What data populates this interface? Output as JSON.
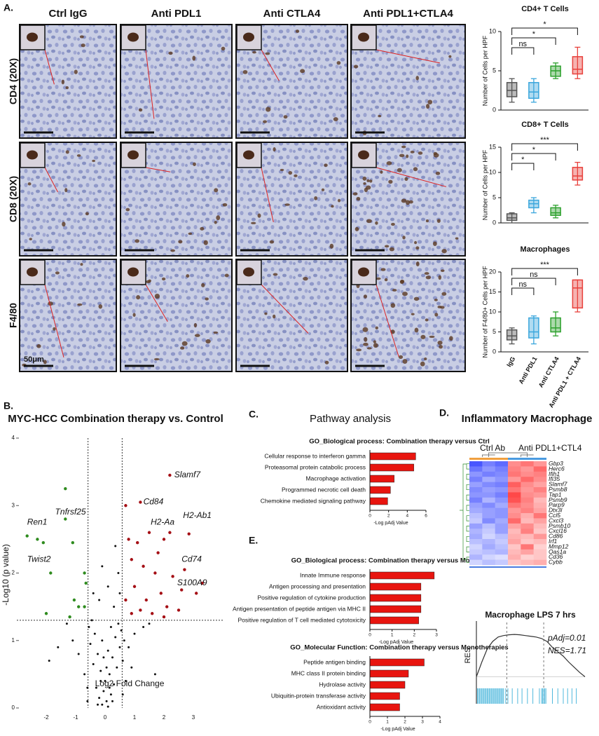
{
  "panels": {
    "a": {
      "label": "A.",
      "columns": [
        "Ctrl IgG",
        "Anti PDL1",
        "Anti CTLA4",
        "Anti PDL1+CTLA4"
      ],
      "rows": [
        "CD4 (20X)",
        "CD8 (20X)",
        "F4/80"
      ],
      "scale_bar": "50μm"
    },
    "b": {
      "label": "B."
    },
    "c": {
      "label": "C.",
      "title": "Pathway analysis"
    },
    "d": {
      "label": "D."
    },
    "e": {
      "label": "E."
    }
  },
  "chart_data": [
    {
      "type": "box",
      "title": "CD4+ T Cells",
      "y_label": "Number of Cells per HPF",
      "ylim": [
        0,
        10
      ],
      "yticks": [
        0,
        5,
        10
      ],
      "boxes": [
        {
          "color": "#555555",
          "min": 1,
          "q1": 1.7,
          "median": 2.5,
          "q3": 3.5,
          "max": 4
        },
        {
          "color": "#3aa6dc",
          "min": 1,
          "q1": 1.5,
          "median": 2.3,
          "q3": 3.5,
          "max": 4
        },
        {
          "color": "#2ca02c",
          "min": 4,
          "q1": 4.3,
          "median": 5,
          "q3": 5.6,
          "max": 6
        },
        {
          "color": "#e8413c",
          "min": 4,
          "q1": 4.6,
          "median": 5.2,
          "q3": 6.8,
          "max": 8
        }
      ],
      "annotations": [
        "ns",
        "*",
        "*"
      ]
    },
    {
      "type": "box",
      "title": "CD8+ T Cells",
      "y_label": "Number of Cells per HPF",
      "ylim": [
        0,
        15
      ],
      "yticks": [
        0,
        5,
        10,
        15
      ],
      "boxes": [
        {
          "color": "#555555",
          "min": 0,
          "q1": 0.5,
          "median": 1,
          "q3": 1.8,
          "max": 2
        },
        {
          "color": "#3aa6dc",
          "min": 2,
          "q1": 3,
          "median": 3.8,
          "q3": 4.5,
          "max": 5
        },
        {
          "color": "#2ca02c",
          "min": 1,
          "q1": 1.5,
          "median": 2,
          "q3": 3,
          "max": 3.5
        },
        {
          "color": "#e8413c",
          "min": 7.5,
          "q1": 8.5,
          "median": 9.3,
          "q3": 11,
          "max": 12
        }
      ],
      "annotations": [
        "*",
        "*",
        "***"
      ]
    },
    {
      "type": "box",
      "title": "Macrophages",
      "y_label": "Number of F4/80+ Cells per HPF",
      "ylim": [
        0,
        20
      ],
      "yticks": [
        0,
        5,
        10,
        15,
        20
      ],
      "categories": [
        "IgG",
        "Anti PDL1",
        "Anti CTLA4",
        "Anti PDL1 + CTLA4"
      ],
      "boxes": [
        {
          "color": "#555555",
          "min": 2,
          "q1": 3,
          "median": 4,
          "q3": 5.5,
          "max": 6
        },
        {
          "color": "#3aa6dc",
          "min": 2,
          "q1": 3.5,
          "median": 5,
          "q3": 8.5,
          "max": 9
        },
        {
          "color": "#2ca02c",
          "min": 4,
          "q1": 5,
          "median": 6,
          "q3": 8.5,
          "max": 10
        },
        {
          "color": "#e8413c",
          "min": 10,
          "q1": 11,
          "median": 16,
          "q3": 18,
          "max": 18
        }
      ],
      "annotations": [
        "ns",
        "ns",
        "***"
      ]
    },
    {
      "type": "scatter",
      "title": "MYC-HCC Combination therapy vs. Control",
      "x_label": "Log2 Fold Change",
      "y_label": "-Log10 (p value)",
      "xlim": [
        -3,
        4
      ],
      "ylim": [
        0,
        4
      ],
      "xticks": [
        -2,
        -1,
        0,
        1,
        2,
        3
      ],
      "yticks": [
        0,
        1,
        2,
        3,
        4
      ],
      "x_thresholds": [
        -0.58,
        0.58
      ],
      "y_threshold": 1.3,
      "series": [
        {
          "color": "#111111",
          "x": [
            -0.1,
            0.05,
            0.1,
            -0.2,
            0.2,
            -0.3,
            0.3,
            -0.05,
            0.0,
            0.15,
            -0.15,
            0.4,
            -0.4,
            0.25,
            -0.25,
            0.5,
            -0.5,
            0.1,
            -0.1,
            0.35,
            -0.35,
            0.55,
            -0.55,
            0.45,
            -0.45,
            0.2,
            0.6,
            0.8,
            1.0,
            1.3,
            0.9,
            0.7,
            -0.7,
            -0.9,
            -1.1,
            -1.3,
            -0.6,
            0.3,
            -0.2,
            0.1,
            0.45,
            -0.4,
            0.35,
            -0.1,
            0.5,
            0.65,
            1.5,
            -1.6,
            0.05,
            -0.05,
            0.15,
            -0.15,
            0.25,
            -0.25,
            0.6,
            -0.6,
            1.7,
            -1.9
          ],
          "values": [
            0.05,
            0.1,
            0.02,
            0.15,
            0.2,
            0.3,
            0.35,
            0.25,
            0.4,
            0.5,
            0.55,
            0.6,
            0.65,
            0.75,
            0.8,
            0.9,
            0.95,
            0.85,
            1.0,
            1.05,
            1.1,
            1.15,
            1.2,
            1.25,
            1.3,
            1.2,
            0.7,
            0.9,
            1.1,
            1.2,
            0.6,
            0.4,
            0.5,
            0.8,
            1.0,
            1.25,
            0.3,
            1.5,
            1.6,
            1.8,
            2.0,
            1.7,
            2.4,
            2.1,
            1.7,
            1.0,
            1.25,
            0.9,
            0.6,
            0.75,
            0.3,
            0.4,
            0.1,
            0.05,
            0.2,
            0.1,
            0.5,
            0.7
          ]
        },
        {
          "color": "#2e8b1e",
          "x": [
            -1.35,
            -2.65,
            -2.3,
            -2.1,
            -1.1,
            -1.85,
            -1.35,
            -0.7,
            -0.65,
            -0.9,
            -0.7,
            -1.05,
            -2.0,
            -1.2
          ],
          "values": [
            3.25,
            2.55,
            2.5,
            2.45,
            2.45,
            2.0,
            2.8,
            2.0,
            1.85,
            1.5,
            1.5,
            1.6,
            1.4,
            1.35
          ]
        },
        {
          "color": "#a50f15",
          "x": [
            2.2,
            1.2,
            0.7,
            2.0,
            2.85,
            2.7,
            3.3,
            0.8,
            1.1,
            1.5,
            2.2,
            0.9,
            1.3,
            1.7,
            2.3,
            2.6,
            1.0,
            1.4,
            1.9,
            2.1,
            0.7,
            1.2,
            1.6,
            2.5,
            0.9,
            3.1,
            1.8,
            2.0
          ],
          "values": [
            3.45,
            3.05,
            3.0,
            2.5,
            2.58,
            2.05,
            1.85,
            2.5,
            2.45,
            2.6,
            2.6,
            2.2,
            2.1,
            2.0,
            1.95,
            1.75,
            1.8,
            1.6,
            1.7,
            1.5,
            1.6,
            1.45,
            1.4,
            1.45,
            1.4,
            1.7,
            2.3,
            1.35
          ]
        }
      ],
      "labels": [
        {
          "text": "Slamf7",
          "x": 2.35,
          "y": 3.45
        },
        {
          "text": "Cd84",
          "x": 1.3,
          "y": 3.05
        },
        {
          "text": "H2-Aa",
          "x": 1.55,
          "y": 2.75
        },
        {
          "text": "H2-Ab1",
          "x": 2.65,
          "y": 2.85
        },
        {
          "text": "Cd74",
          "x": 2.6,
          "y": 2.2
        },
        {
          "text": "S100A9",
          "x": 2.45,
          "y": 1.85
        },
        {
          "text": "Tnfrsf25",
          "x": -1.7,
          "y": 2.9
        },
        {
          "text": "Ren1",
          "x": -2.65,
          "y": 2.75
        },
        {
          "text": "Twist2",
          "x": -2.65,
          "y": 2.2
        }
      ]
    },
    {
      "type": "barh",
      "title": "GO_Biological process: Combination therapy versus Ctrl",
      "x_label": "-Log pAdj Value",
      "color": "#e8150f",
      "categories": [
        "Cellular response to interferon gamma",
        "Proteasomal protein catabolic process",
        "Macrophage activation",
        "Programmed necrotic cell death",
        "Chemokine mediated signaling pathway"
      ],
      "values": [
        4.9,
        4.7,
        2.6,
        2.2,
        1.9
      ],
      "xlim": [
        0,
        6
      ],
      "xticks": [
        0,
        2,
        4,
        6
      ]
    },
    {
      "type": "barh",
      "title": "GO_Biological process: Combination therapy versus Monotherapies",
      "x_label": "-Log pAdj Value",
      "color": "#e8150f",
      "categories": [
        "Innate Immune response",
        "Antigen processing and presentation",
        "Positive regulation of cytokine production",
        "Antigen presentation of peptide antigen via MHC II",
        "Positive regulation of T cell mediated cytotoxicity"
      ],
      "values": [
        2.9,
        2.3,
        2.3,
        2.3,
        2.2
      ],
      "xlim": [
        0,
        3
      ],
      "xticks": [
        0,
        1,
        2,
        3
      ]
    },
    {
      "type": "barh",
      "title": "GO_Molecular Function: Combination therapy versus Monotherapies",
      "x_label": "-Log pAdj Value",
      "color": "#e8150f",
      "categories": [
        "Peptide antigen binding",
        "MHC class II protein binding",
        "Hydrolase activity",
        "Ubiquitin-protein transferase activity",
        "Antioxidant activity"
      ],
      "values": [
        3.1,
        2.2,
        2.0,
        1.7,
        1.7
      ],
      "xlim": [
        0,
        4
      ],
      "xticks": [
        0,
        1,
        2,
        3,
        4
      ]
    },
    {
      "type": "heatmap",
      "title": "Inflammatory Macrophage",
      "groups": [
        "Ctrl Ab",
        "Anti PDL1+CTL4"
      ],
      "rows": [
        "Gbp3",
        "Herc6",
        "Ifih1",
        "Ifi35",
        "Slamf7",
        "Psmb8",
        "Tap1",
        "Psmb9",
        "Parp9",
        "Dtx3l",
        "Ccl5",
        "Cxcl3",
        "Psmb10",
        "Cxcl16",
        "Cd86",
        "Irf1",
        "Mmp12",
        "Oas1a",
        "Cd36",
        "Cybb"
      ],
      "values": [
        [
          -1.6,
          -1.2,
          -1.4,
          1.0,
          1.2,
          0.9
        ],
        [
          -1.3,
          -1.0,
          -1.2,
          1.1,
          0.9,
          1.3
        ],
        [
          -1.0,
          -1.2,
          -1.1,
          1.2,
          1.0,
          1.1
        ],
        [
          -1.2,
          -0.8,
          -1.0,
          0.9,
          1.3,
          1.0
        ],
        [
          -0.9,
          -1.1,
          -1.2,
          1.4,
          1.0,
          0.8
        ],
        [
          -1.1,
          -0.9,
          -1.0,
          1.2,
          0.9,
          1.1
        ],
        [
          -1.0,
          -1.0,
          -1.2,
          1.6,
          1.0,
          0.9
        ],
        [
          -1.2,
          -0.7,
          -1.0,
          1.5,
          1.1,
          0.6
        ],
        [
          -0.9,
          -1.1,
          -0.8,
          1.2,
          1.0,
          0.7
        ],
        [
          -0.8,
          -0.9,
          -1.0,
          0.9,
          1.1,
          0.8
        ],
        [
          -0.6,
          -0.9,
          -1.0,
          1.0,
          0.7,
          1.2
        ],
        [
          -0.5,
          -1.1,
          -0.8,
          1.3,
          0.6,
          0.8
        ],
        [
          -0.9,
          -0.6,
          -0.9,
          0.8,
          1.0,
          0.6
        ],
        [
          -0.7,
          -0.5,
          -0.9,
          0.6,
          1.1,
          0.5
        ],
        [
          -0.8,
          -0.4,
          -0.6,
          0.7,
          0.6,
          0.9
        ],
        [
          -0.6,
          -0.7,
          -0.5,
          0.8,
          0.5,
          0.6
        ],
        [
          -0.4,
          -0.8,
          -0.6,
          0.5,
          1.2,
          0.4
        ],
        [
          -0.5,
          -0.6,
          -0.7,
          0.6,
          0.8,
          0.5
        ],
        [
          -0.7,
          -0.4,
          -0.3,
          0.7,
          0.4,
          0.5
        ],
        [
          -0.4,
          -0.6,
          -0.5,
          0.5,
          0.6,
          0.7
        ]
      ],
      "clim": [
        -2,
        2
      ],
      "colors": [
        "#1a2cff",
        "#ffffff",
        "#ff1a1a"
      ]
    },
    {
      "type": "line",
      "title": "Macrophage LPS 7 hrs",
      "y_label": "RES",
      "color": "#333333",
      "hit_color": "#4fb8dc",
      "x": [
        0,
        5,
        10,
        15,
        20,
        25,
        30,
        35,
        40,
        45,
        50,
        55,
        60,
        65,
        70,
        75,
        80,
        85,
        90,
        95,
        100
      ],
      "values": [
        0,
        0.2,
        0.38,
        0.48,
        0.54,
        0.56,
        0.57,
        0.575,
        0.57,
        0.56,
        0.55,
        0.54,
        0.52,
        0.48,
        0.4,
        0.34,
        0.28,
        0.2,
        0.13,
        0.06,
        0
      ],
      "xlim": [
        0,
        100
      ],
      "ylim": [
        -0.1,
        0.7
      ],
      "markers": [
        28,
        62
      ],
      "hits": [
        1,
        2,
        3,
        4,
        5,
        6,
        7,
        8,
        9,
        10,
        11,
        12,
        13,
        14,
        15,
        16,
        17,
        18,
        19,
        20,
        21,
        22,
        23,
        24,
        25,
        27,
        29,
        33,
        38,
        42,
        47,
        52,
        58,
        60,
        61,
        62,
        63,
        64,
        70,
        75,
        80,
        84,
        88,
        92
      ],
      "annotations": [
        "pAdj=0.01",
        "NES=1.71"
      ]
    }
  ]
}
